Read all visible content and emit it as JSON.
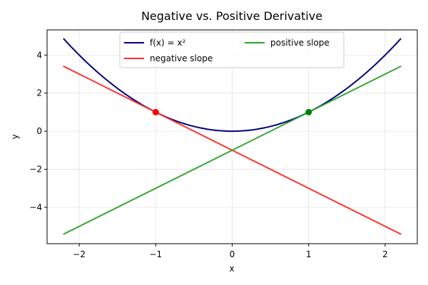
{
  "chart_data": {
    "type": "line",
    "title": "Negative vs. Positive Derivative",
    "xlabel": "x",
    "ylabel": "y",
    "xlim": [
      -2.42,
      2.42
    ],
    "ylim": [
      -5.91,
      5.32
    ],
    "xticks": [
      -2,
      -1,
      0,
      1,
      2
    ],
    "yticks": [
      -4,
      -2,
      0,
      2,
      4
    ],
    "xtick_labels": [
      "−2",
      "−1",
      "0",
      "1",
      "2"
    ],
    "ytick_labels": [
      "−4",
      "−2",
      "0",
      "2",
      "4"
    ],
    "grid": true,
    "legend_placement": "top-center",
    "series": [
      {
        "name": "f(x) = x²",
        "kind": "curve",
        "expression": "x^2",
        "x_range": [
          -2.2,
          2.2
        ],
        "color": "#000080",
        "stroke_width": 2
      },
      {
        "name": "negative slope",
        "kind": "line",
        "x": [
          -2.2,
          2.2
        ],
        "y": [
          3.4,
          -5.4
        ],
        "color": "#ff2a2a",
        "stroke_width": 2
      },
      {
        "name": "positive slope",
        "kind": "line",
        "x": [
          -2.2,
          2.2
        ],
        "y": [
          -5.4,
          3.4
        ],
        "color": "#2ca02c",
        "stroke_width": 2
      }
    ],
    "points": [
      {
        "x": -1,
        "y": 1,
        "color": "#ff0000"
      },
      {
        "x": 1,
        "y": 1,
        "color": "#008000"
      }
    ]
  }
}
